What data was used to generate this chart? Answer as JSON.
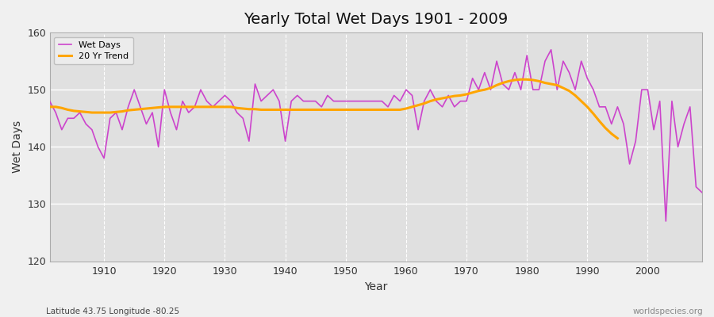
{
  "title": "Yearly Total Wet Days 1901 - 2009",
  "xlabel": "Year",
  "ylabel": "Wet Days",
  "subtitle": "Latitude 43.75 Longitude -80.25",
  "watermark": "worldspecies.org",
  "line_color": "#CC44CC",
  "trend_color": "#FFA500",
  "bg_color": "#F0F0F0",
  "plot_bg_color": "#E0E0E0",
  "ylim": [
    120,
    160
  ],
  "xlim": [
    1901,
    2009
  ],
  "yticks": [
    120,
    130,
    140,
    150,
    160
  ],
  "xticks": [
    1910,
    1920,
    1930,
    1940,
    1950,
    1960,
    1970,
    1980,
    1990,
    2000
  ],
  "years": [
    1901,
    1902,
    1903,
    1904,
    1905,
    1906,
    1907,
    1908,
    1909,
    1910,
    1911,
    1912,
    1913,
    1914,
    1915,
    1916,
    1917,
    1918,
    1919,
    1920,
    1921,
    1922,
    1923,
    1924,
    1925,
    1926,
    1927,
    1928,
    1929,
    1930,
    1931,
    1932,
    1933,
    1934,
    1935,
    1936,
    1937,
    1938,
    1939,
    1940,
    1941,
    1942,
    1943,
    1944,
    1945,
    1946,
    1947,
    1948,
    1949,
    1950,
    1951,
    1952,
    1953,
    1954,
    1955,
    1956,
    1957,
    1958,
    1959,
    1960,
    1961,
    1962,
    1963,
    1964,
    1965,
    1966,
    1967,
    1968,
    1969,
    1970,
    1971,
    1972,
    1973,
    1974,
    1975,
    1976,
    1977,
    1978,
    1979,
    1980,
    1981,
    1982,
    1983,
    1984,
    1985,
    1986,
    1987,
    1988,
    1989,
    1990,
    1991,
    1992,
    1993,
    1994,
    1995,
    1996,
    1997,
    1998,
    1999,
    2000,
    2001,
    2002,
    2003,
    2004,
    2005,
    2006,
    2007,
    2008,
    2009
  ],
  "wet_days": [
    148,
    146,
    143,
    145,
    145,
    146,
    144,
    143,
    140,
    138,
    145,
    146,
    143,
    147,
    150,
    147,
    144,
    146,
    140,
    150,
    146,
    143,
    148,
    146,
    147,
    150,
    148,
    147,
    148,
    149,
    148,
    146,
    145,
    141,
    151,
    148,
    149,
    150,
    148,
    141,
    148,
    149,
    148,
    148,
    148,
    147,
    149,
    148,
    148,
    148,
    148,
    148,
    148,
    148,
    148,
    148,
    147,
    149,
    148,
    150,
    149,
    143,
    148,
    150,
    148,
    147,
    149,
    147,
    148,
    148,
    152,
    150,
    153,
    150,
    155,
    151,
    150,
    153,
    150,
    156,
    150,
    150,
    155,
    157,
    150,
    155,
    153,
    150,
    155,
    152,
    150,
    147,
    147,
    144,
    147,
    144,
    137,
    141,
    150,
    150,
    143,
    148,
    127,
    148,
    140,
    144,
    147,
    133,
    132
  ],
  "trend": [
    147.0,
    147.0,
    146.8,
    146.5,
    146.3,
    146.2,
    146.1,
    146.0,
    146.0,
    146.0,
    146.0,
    146.1,
    146.2,
    146.4,
    146.5,
    146.6,
    146.7,
    146.8,
    146.9,
    147.0,
    147.0,
    147.0,
    147.0,
    147.0,
    147.0,
    147.0,
    147.0,
    147.0,
    147.0,
    147.0,
    147.0,
    146.8,
    146.7,
    146.6,
    146.6,
    146.5,
    146.5,
    146.5,
    146.5,
    146.5,
    146.5,
    146.5,
    146.5,
    146.5,
    146.5,
    146.5,
    146.5,
    146.5,
    146.5,
    146.5,
    146.5,
    146.5,
    146.5,
    146.5,
    146.5,
    146.5,
    146.5,
    146.5,
    146.5,
    146.7,
    147.0,
    147.3,
    147.6,
    148.0,
    148.3,
    148.5,
    148.7,
    148.9,
    149.0,
    149.2,
    149.5,
    149.8,
    150.0,
    150.3,
    150.8,
    151.2,
    151.5,
    151.7,
    151.8,
    151.8,
    151.7,
    151.5,
    151.2,
    151.0,
    150.8,
    150.3,
    149.8,
    149.0,
    148.0,
    147.0,
    145.8,
    144.5,
    143.3,
    142.3,
    141.5,
    null,
    null,
    null,
    null,
    null,
    null,
    null,
    null,
    null,
    null,
    null,
    null,
    null,
    null
  ]
}
